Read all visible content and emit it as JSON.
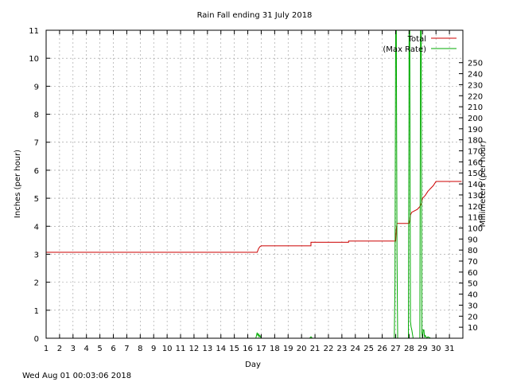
{
  "chart_data": {
    "type": "line",
    "title": "Rain Fall ending 31 July 2018",
    "xlabel": "Day",
    "ylabel": "Inches (per hour)",
    "y2label": "Millimeters (per hour)",
    "timestamp": "Wed Aug 01 00:03:06 2018",
    "xlim": [
      1,
      32
    ],
    "ylim": [
      0,
      11
    ],
    "y2lim": [
      0,
      279.4
    ],
    "x_ticks": [
      "1",
      "2",
      "3",
      "4",
      "5",
      "6",
      "7",
      "8",
      "9",
      "10",
      "11",
      "12",
      "13",
      "14",
      "15",
      "16",
      "17",
      "18",
      "19",
      "20",
      "21",
      "22",
      "23",
      "24",
      "25",
      "26",
      "27",
      "28",
      "29",
      "30",
      "31"
    ],
    "y_ticks": [
      "0",
      "1",
      "2",
      "3",
      "4",
      "5",
      "6",
      "7",
      "8",
      "9",
      "10",
      "11"
    ],
    "y2_ticks": [
      "10",
      "20",
      "30",
      "40",
      "50",
      "60",
      "70",
      "80",
      "90",
      "100",
      "110",
      "120",
      "130",
      "140",
      "150",
      "160",
      "170",
      "180",
      "190",
      "200",
      "210",
      "220",
      "230",
      "240",
      "250"
    ],
    "grid": true,
    "legend_position": "top-right",
    "series": [
      {
        "name": "Total",
        "color": "#cc0000",
        "x": [
          1,
          16.7,
          16.8,
          16.9,
          17.0,
          20.7,
          20.7,
          23.5,
          23.5,
          27.0,
          27.05,
          27.1,
          28.0,
          28.05,
          28.1,
          28.2,
          28.4,
          28.6,
          28.8,
          28.9,
          29.0,
          29.2,
          29.4,
          29.6,
          29.8,
          30.0,
          31.9
        ],
        "values": [
          3.07,
          3.07,
          3.2,
          3.27,
          3.3,
          3.3,
          3.43,
          3.43,
          3.47,
          3.47,
          3.9,
          4.1,
          4.1,
          4.2,
          4.4,
          4.5,
          4.55,
          4.6,
          4.7,
          4.8,
          5.0,
          5.1,
          5.25,
          5.35,
          5.45,
          5.6,
          5.6
        ]
      },
      {
        "name": "(Max Rate)",
        "color": "#00aa00",
        "x": [
          1,
          16.6,
          16.7,
          16.75,
          16.8,
          16.85,
          16.9,
          17.0,
          20.6,
          20.7,
          20.8,
          26.9,
          26.95,
          27.0,
          27.05,
          27.1,
          27.15,
          27.95,
          28.0,
          28.05,
          28.1,
          28.15,
          28.2,
          28.3,
          28.4,
          28.8,
          28.85,
          28.9,
          28.95,
          29.0,
          29.05,
          29.1,
          29.15,
          29.2,
          29.3,
          29.4,
          29.6,
          31.9
        ],
        "values": [
          0,
          0,
          0.2,
          0.1,
          0.15,
          0.05,
          0.1,
          0,
          0,
          0.05,
          0,
          0,
          2.0,
          11,
          11,
          3.0,
          0,
          0,
          11,
          11,
          0.6,
          0.4,
          0.3,
          0,
          0,
          0,
          11,
          11,
          0.2,
          0,
          0.3,
          0.3,
          0.05,
          0.1,
          0,
          0.05,
          0,
          0
        ]
      }
    ]
  }
}
